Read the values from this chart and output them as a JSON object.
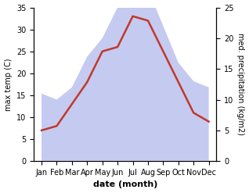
{
  "months": [
    "Jan",
    "Feb",
    "Mar",
    "Apr",
    "May",
    "Jun",
    "Jul",
    "Aug",
    "Sep",
    "Oct",
    "Nov",
    "Dec"
  ],
  "temperature": [
    7,
    8,
    13,
    18,
    25,
    26,
    33,
    32,
    25,
    18,
    11,
    9
  ],
  "precipitation": [
    11,
    10,
    12,
    17,
    20,
    25,
    33,
    28,
    22,
    16,
    13,
    12
  ],
  "temp_color": "#c0392b",
  "precip_fill_color": "#c5caf0",
  "temp_ylim": [
    0,
    35
  ],
  "precip_ylim": [
    0,
    25
  ],
  "temp_yticks": [
    0,
    5,
    10,
    15,
    20,
    25,
    30,
    35
  ],
  "precip_yticks": [
    0,
    5,
    10,
    15,
    20,
    25
  ],
  "xlabel": "date (month)",
  "ylabel_left": "max temp (C)",
  "ylabel_right": "med. precipitation (kg/m2)"
}
